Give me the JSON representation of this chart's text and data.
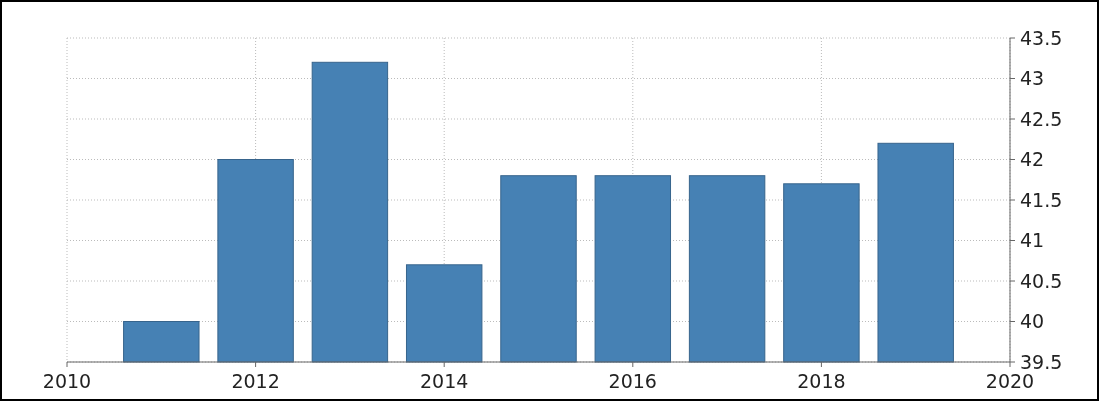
{
  "chart_data": {
    "type": "bar",
    "x": [
      2011,
      2012,
      2013,
      2014,
      2015,
      2016,
      2017,
      2018,
      2019
    ],
    "values": [
      40.0,
      42.0,
      43.2,
      40.7,
      41.8,
      41.8,
      41.8,
      41.7,
      42.2
    ],
    "color": "#4681b4",
    "xlim": [
      2010,
      2020
    ],
    "xticks": [
      2010,
      2012,
      2014,
      2016,
      2018,
      2020
    ],
    "ylim": [
      39.5,
      43.5
    ],
    "yticks": [
      39.5,
      40,
      40.5,
      41,
      41.5,
      42,
      42.5,
      43,
      43.5
    ],
    "grid": true
  }
}
